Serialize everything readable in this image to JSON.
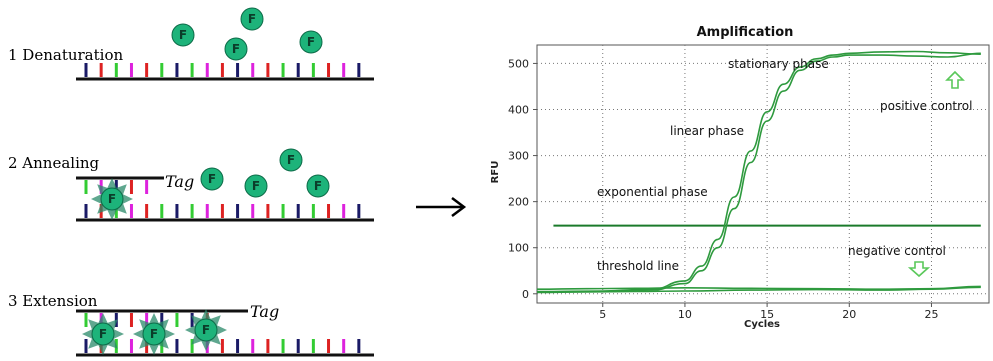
{
  "steps": [
    {
      "label": "1 Denaturation"
    },
    {
      "label": "2 Annealing",
      "tag": "Tag"
    },
    {
      "label": "3 Extension",
      "tag": "Tag"
    }
  ],
  "fluorophore_label": "F",
  "colors": {
    "backbone": "#111111",
    "base_navy": "#1a1a66",
    "base_red": "#dd2222",
    "base_green": "#33cc33",
    "base_magenta": "#dd22dd",
    "fluorophore": "#1db37a",
    "star": "#2a8a6a",
    "curve": "#2e9a3e",
    "threshold": "#1a7a2a",
    "arrow": "#5ac85a"
  },
  "chart_data": {
    "type": "line",
    "title": "Amplification",
    "xlabel": "Cycles",
    "ylabel": "RFU",
    "xlim": [
      1,
      28.5
    ],
    "ylim": [
      -20,
      540
    ],
    "xticks": [
      5,
      10,
      15,
      20,
      25
    ],
    "yticks": [
      0,
      100,
      200,
      300,
      400,
      500
    ],
    "grid": true,
    "threshold": 148,
    "series": [
      {
        "x": [
          1,
          5,
          8,
          10,
          11,
          12,
          13,
          14,
          15,
          16,
          17,
          18,
          19,
          20,
          22,
          24,
          26,
          28
        ],
        "y": [
          5,
          6,
          10,
          28,
          60,
          118,
          210,
          310,
          395,
          455,
          492,
          510,
          518,
          522,
          525,
          526,
          523,
          520
        ]
      },
      {
        "x": [
          1,
          5,
          8,
          10,
          11,
          12,
          13,
          14,
          15,
          16,
          17,
          18,
          19,
          20,
          22,
          24,
          26,
          28
        ],
        "y": [
          4,
          5,
          8,
          22,
          50,
          100,
          185,
          285,
          375,
          440,
          485,
          505,
          514,
          518,
          518,
          516,
          514,
          522
        ]
      },
      {
        "x": [
          1,
          4,
          7,
          10,
          14,
          18,
          22,
          25,
          28
        ],
        "y": [
          10,
          11,
          12,
          13,
          12,
          11,
          10,
          11,
          16
        ]
      },
      {
        "x": [
          1,
          4,
          7,
          10,
          14,
          18,
          22,
          25,
          28
        ],
        "y": [
          3,
          4,
          5,
          6,
          8,
          9,
          8,
          10,
          14
        ]
      }
    ],
    "annotations": {
      "stationary": "stationary phase",
      "positive": "positive control",
      "linear": "linear phase",
      "exponential": "exponential phase",
      "negative": "negative control",
      "threshold": "threshold line"
    }
  }
}
